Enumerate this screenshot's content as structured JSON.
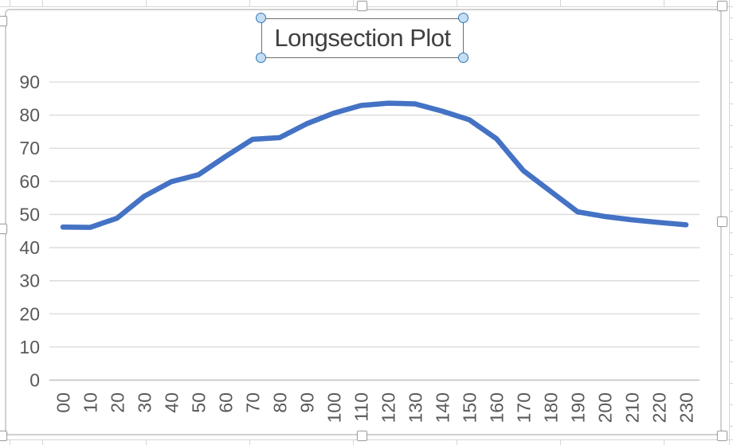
{
  "sheet": {
    "gridline_color": "#d6d6d6"
  },
  "chart_object": {
    "border_color": "#d2d0d0",
    "selected": true
  },
  "title_box": {
    "selected": true
  },
  "chart_data": {
    "type": "line",
    "title": "Longsection Plot",
    "categories": [
      "00",
      "10",
      "20",
      "30",
      "40",
      "50",
      "60",
      "70",
      "80",
      "90",
      "100",
      "110",
      "120",
      "130",
      "140",
      "150",
      "160",
      "170",
      "180",
      "190",
      "200",
      "210",
      "220",
      "230"
    ],
    "values": [
      46.2,
      46.1,
      48.9,
      55.5,
      59.9,
      62.0,
      67.5,
      72.7,
      73.2,
      77.4,
      80.6,
      82.9,
      83.6,
      83.4,
      81.2,
      78.6,
      72.9,
      63.2,
      57.0,
      50.8,
      49.4,
      48.4,
      47.6,
      46.9
    ],
    "y_ticks": [
      0,
      10,
      20,
      30,
      40,
      50,
      60,
      70,
      80,
      90
    ],
    "ylim": [
      0,
      90
    ],
    "xlabel": "",
    "ylabel": "",
    "grid": true,
    "legend": false,
    "x_label_rotation": -90,
    "series_color": "#4472C4",
    "axis_label_color": "#595959",
    "gridline_color": "#d9d9d9",
    "axis_line_color": "#bfbfbf",
    "title_color": "#404040"
  }
}
